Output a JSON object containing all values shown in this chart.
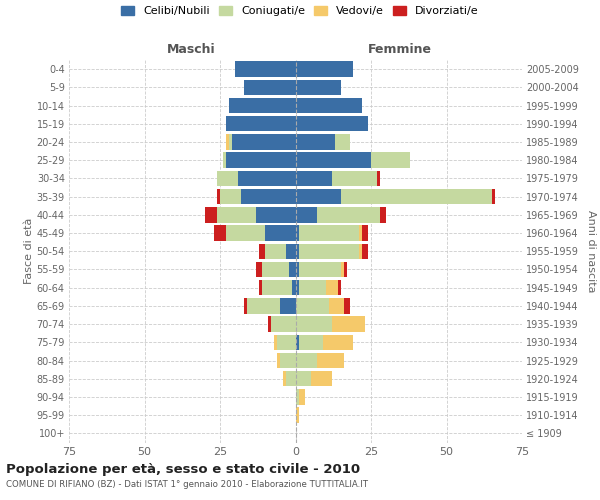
{
  "age_groups": [
    "100+",
    "95-99",
    "90-94",
    "85-89",
    "80-84",
    "75-79",
    "70-74",
    "65-69",
    "60-64",
    "55-59",
    "50-54",
    "45-49",
    "40-44",
    "35-39",
    "30-34",
    "25-29",
    "20-24",
    "15-19",
    "10-14",
    "5-9",
    "0-4"
  ],
  "birth_years": [
    "≤ 1909",
    "1910-1914",
    "1915-1919",
    "1920-1924",
    "1925-1929",
    "1930-1934",
    "1935-1939",
    "1940-1944",
    "1945-1949",
    "1950-1954",
    "1955-1959",
    "1960-1964",
    "1965-1969",
    "1970-1974",
    "1975-1979",
    "1980-1984",
    "1985-1989",
    "1990-1994",
    "1995-1999",
    "2000-2004",
    "2005-2009"
  ],
  "male": {
    "celibi": [
      0,
      0,
      0,
      0,
      0,
      0,
      0,
      5,
      1,
      2,
      3,
      10,
      13,
      18,
      19,
      23,
      21,
      23,
      22,
      17,
      20
    ],
    "coniugati": [
      0,
      0,
      0,
      3,
      5,
      6,
      8,
      11,
      10,
      9,
      7,
      13,
      13,
      7,
      7,
      1,
      1,
      0,
      0,
      0,
      0
    ],
    "vedovi": [
      0,
      0,
      0,
      1,
      1,
      1,
      0,
      0,
      0,
      0,
      0,
      0,
      0,
      0,
      0,
      0,
      1,
      0,
      0,
      0,
      0
    ],
    "divorziati": [
      0,
      0,
      0,
      0,
      0,
      0,
      1,
      1,
      1,
      2,
      2,
      4,
      4,
      1,
      0,
      0,
      0,
      0,
      0,
      0,
      0
    ]
  },
  "female": {
    "nubili": [
      0,
      0,
      0,
      0,
      0,
      1,
      0,
      0,
      1,
      1,
      1,
      1,
      7,
      15,
      12,
      25,
      13,
      24,
      22,
      15,
      19
    ],
    "coniugate": [
      0,
      0,
      1,
      5,
      7,
      8,
      12,
      11,
      9,
      14,
      20,
      20,
      21,
      50,
      15,
      13,
      5,
      0,
      0,
      0,
      0
    ],
    "vedove": [
      0,
      1,
      2,
      7,
      9,
      10,
      11,
      5,
      4,
      1,
      1,
      1,
      0,
      0,
      0,
      0,
      0,
      0,
      0,
      0,
      0
    ],
    "divorziate": [
      0,
      0,
      0,
      0,
      0,
      0,
      0,
      2,
      1,
      1,
      2,
      2,
      2,
      1,
      1,
      0,
      0,
      0,
      0,
      0,
      0
    ]
  },
  "colors": {
    "celibi": "#3a6ea5",
    "coniugati": "#c5d9a0",
    "vedovi": "#f5c96a",
    "divorziati": "#cc1f1f"
  },
  "xlim": 75,
  "title": "Popolazione per età, sesso e stato civile - 2010",
  "subtitle": "COMUNE DI RIFIANO (BZ) - Dati ISTAT 1° gennaio 2010 - Elaborazione TUTTITALIA.IT",
  "ylabel_left": "Fasce di età",
  "ylabel_right": "Anni di nascita",
  "xlabel_left": "Maschi",
  "xlabel_right": "Femmine",
  "background_color": "#ffffff",
  "grid_color": "#cccccc"
}
